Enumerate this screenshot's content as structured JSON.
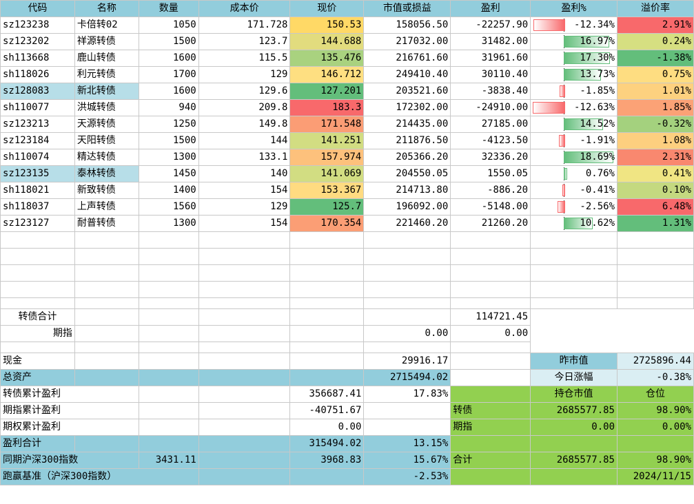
{
  "headers": [
    "代码",
    "名称",
    "数量",
    "成本价",
    "现价",
    "市值或损益",
    "盈利",
    "盈利%",
    "溢价率"
  ],
  "rows": [
    {
      "code": "sz123238",
      "name": "卡倍转02",
      "qty": "1050",
      "cost": "171.728",
      "price": "150.53",
      "value": "158056.50",
      "profit": "-22257.90",
      "pct": "-12.34%",
      "pct_value": -12.34,
      "premium": "2.91%",
      "price_color": "#ffd966",
      "premium_color": "#f8696b",
      "selected": false
    },
    {
      "code": "sz123202",
      "name": "祥源转债",
      "qty": "1500",
      "cost": "123.7",
      "price": "144.688",
      "value": "217032.00",
      "profit": "31482.00",
      "pct": "16.97%",
      "pct_value": 16.97,
      "premium": "0.24%",
      "price_color": "#e2dc7e",
      "premium_color": "#d6df81",
      "selected": false
    },
    {
      "code": "sh113668",
      "name": "鹿山转债",
      "qty": "1600",
      "cost": "115.5",
      "price": "135.476",
      "value": "216761.60",
      "profit": "31961.60",
      "pct": "17.30%",
      "pct_value": 17.3,
      "premium": "-1.38%",
      "price_color": "#a9d27f",
      "premium_color": "#63be7b",
      "selected": false
    },
    {
      "code": "sh118026",
      "name": "利元转债",
      "qty": "1700",
      "cost": "129",
      "price": "146.712",
      "value": "249410.40",
      "profit": "30110.40",
      "pct": "13.73%",
      "pct_value": 13.73,
      "premium": "0.75%",
      "price_color": "#fedf81",
      "premium_color": "#fedd81",
      "selected": false
    },
    {
      "code": "sz128083",
      "name": "新北转债",
      "qty": "1600",
      "cost": "129.6",
      "price": "127.201",
      "value": "203521.60",
      "profit": "-3838.40",
      "pct": "-1.85%",
      "pct_value": -1.85,
      "premium": "1.01%",
      "price_color": "#63be7b",
      "premium_color": "#fdd17f",
      "selected": true
    },
    {
      "code": "sh110077",
      "name": "洪城转债",
      "qty": "940",
      "cost": "209.8",
      "price": "183.3",
      "value": "172302.00",
      "profit": "-24910.00",
      "pct": "-12.63%",
      "pct_value": -12.63,
      "premium": "1.85%",
      "price_color": "#f8696b",
      "premium_color": "#fba276",
      "selected": false
    },
    {
      "code": "sz123213",
      "name": "天源转债",
      "qty": "1250",
      "cost": "149.8",
      "price": "171.548",
      "value": "214435.00",
      "profit": "27185.00",
      "pct": "14.52%",
      "pct_value": 14.52,
      "premium": "-0.32%",
      "price_color": "#fb9d75",
      "premium_color": "#a4d17e",
      "selected": false
    },
    {
      "code": "sz123184",
      "name": "天阳转债",
      "qty": "1500",
      "cost": "144",
      "price": "141.251",
      "value": "211876.50",
      "profit": "-4123.50",
      "pct": "-1.91%",
      "pct_value": -1.91,
      "premium": "1.08%",
      "price_color": "#d2dd82",
      "premium_color": "#fdcf7f",
      "selected": false
    },
    {
      "code": "sh110074",
      "name": "精达转债",
      "qty": "1300",
      "cost": "133.1",
      "price": "157.974",
      "value": "205366.20",
      "profit": "32336.20",
      "pct": "18.69%",
      "pct_value": 18.69,
      "premium": "2.31%",
      "price_color": "#fdc17c",
      "premium_color": "#f9886f",
      "selected": false
    },
    {
      "code": "sz123135",
      "name": "泰林转债",
      "qty": "1450",
      "cost": "140",
      "price": "141.069",
      "value": "204550.05",
      "profit": "1550.05",
      "pct": "0.76%",
      "pct_value": 0.76,
      "premium": "0.41%",
      "price_color": "#d2dd82",
      "premium_color": "#f0e583",
      "selected": true
    },
    {
      "code": "sh118021",
      "name": "新致转债",
      "qty": "1400",
      "cost": "154",
      "price": "153.367",
      "value": "214713.80",
      "profit": "-886.20",
      "pct": "-0.41%",
      "pct_value": -0.41,
      "premium": "0.10%",
      "price_color": "#ffdb81",
      "premium_color": "#c4d980",
      "selected": false
    },
    {
      "code": "sh118037",
      "name": "上声转债",
      "qty": "1560",
      "cost": "129",
      "price": "125.7",
      "value": "196092.00",
      "profit": "-5148.00",
      "pct": "-2.56%",
      "pct_value": -2.56,
      "premium": "6.48%",
      "price_color": "#63be7b",
      "premium_color": "#f8696b",
      "selected": false
    },
    {
      "code": "sz123127",
      "name": "耐普转债",
      "qty": "1300",
      "cost": "154",
      "price": "170.354",
      "value": "221460.20",
      "profit": "21260.20",
      "pct": "10.62%",
      "pct_value": 10.62,
      "premium": "1.31%",
      "price_color": "#fb9e75",
      "premium_color": "#63be7b",
      "selected": false
    }
  ],
  "empty_rows": 4,
  "summary": {
    "bond_total_label": "转债合计",
    "bond_total_profit": "114721.45",
    "futures_label": "期指",
    "futures_value": "0.00",
    "futures_profit": "0.00",
    "cash_label": "现金",
    "cash_value": "29916.17",
    "prev_value_label": "昨市值",
    "prev_value": "2725896.44",
    "total_assets_label": "总资产",
    "total_assets": "2715494.02",
    "today_change_label": "今日涨幅",
    "today_change": "-0.38%",
    "bond_cum_label": "转债累计盈利",
    "bond_cum_value": "356687.41",
    "bond_cum_pct": "17.83%",
    "hold_value_label": "持仓市值",
    "position_label": "仓位",
    "futures_cum_label": "期指累计盈利",
    "futures_cum_value": "-40751.67",
    "bond_label": "转债",
    "bond_hold_value": "2685577.85",
    "bond_position": "98.90%",
    "options_cum_label": "期权累计盈利",
    "options_cum_value": "0.00",
    "futures_label2": "期指",
    "futures_hold_value": "0.00",
    "futures_position": "0.00%",
    "profit_total_label": "盈利合计",
    "profit_total_value": "315494.02",
    "profit_total_pct": "13.15%",
    "hs300_label": "同期沪深300指数",
    "hs300_start": "3431.11",
    "hs300_end": "3968.83",
    "hs300_pct": "15.67%",
    "total_label": "合计",
    "total_hold_value": "2685577.85",
    "total_position": "98.90%",
    "beat_label": "跑赢基准（沪深300指数）",
    "beat_pct": "-2.53%",
    "date": "2024/11/15"
  }
}
